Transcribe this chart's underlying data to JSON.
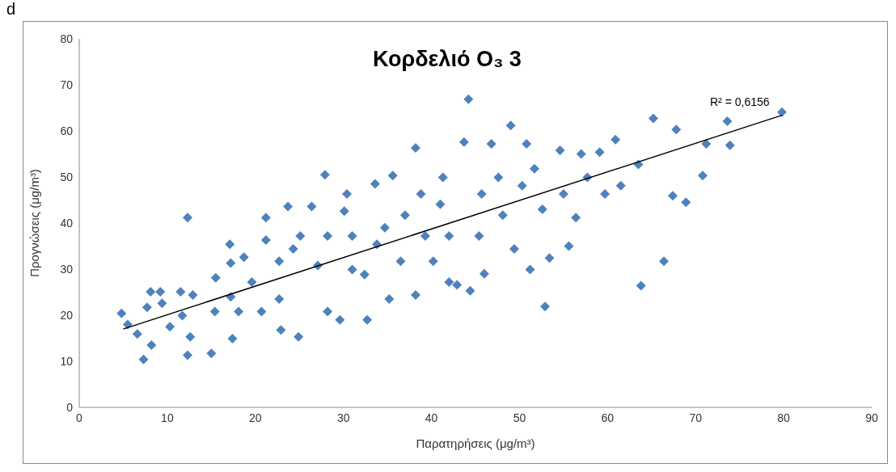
{
  "chart_data": {
    "type": "scatter",
    "title": "Κορδελιό O₃ 3",
    "xlabel": "Παρατηρήσεις (μg/m³)",
    "ylabel": "Προγνώσεις (μg/m³)",
    "annotations": [
      "d",
      "R² = 0,6156"
    ],
    "xlim": [
      0,
      90
    ],
    "xticks": [
      0,
      10,
      20,
      30,
      40,
      50,
      60,
      70,
      80,
      90
    ],
    "ylim": [
      0,
      80
    ],
    "yticks": [
      0,
      10,
      20,
      30,
      40,
      50,
      60,
      70,
      80
    ],
    "series": [
      {
        "marker": "diamond",
        "color": "#4f81bd",
        "x": [
          4.8,
          5.5,
          6.6,
          7.3,
          7.7,
          8.1,
          9.2,
          9.4,
          8.2,
          10.3,
          11.5,
          12.3,
          12.3,
          12.9,
          12.6,
          15,
          15.4,
          15.5,
          17.1,
          17.2,
          17.4,
          18.1,
          18.7,
          19.6,
          21.2,
          21.2,
          20.7,
          22.7,
          22.9,
          23.7,
          24.3,
          24.9,
          25.1,
          26.4,
          27.1,
          27.9,
          28.2,
          29.6,
          30.1,
          30.4,
          31,
          31,
          32.7,
          33.6,
          33.8,
          35.2,
          35.6,
          36.5,
          37,
          38.2,
          38.2,
          38.8,
          39.3,
          40.2,
          41,
          41.3,
          42,
          42.9,
          43.7,
          44.2,
          44.4,
          45.4,
          46,
          46.8,
          47.6,
          48.1,
          49,
          49.4,
          50.8,
          51.2,
          52.6,
          52.9,
          53.4,
          54.6,
          55.6,
          56.4,
          57,
          57.7,
          59.1,
          59.7,
          60.9,
          61.5,
          63.5,
          63.8,
          65.2,
          66.4,
          67.8,
          67.4,
          68.9,
          70.8,
          71.2,
          73.6,
          73.9,
          79.8,
          32.4,
          28.2,
          34.7,
          42,
          45.7,
          50.3,
          55,
          22.7,
          17.2,
          11.7,
          51.7
        ],
        "values": [
          20.4,
          18,
          15.9,
          10.4,
          21.7,
          25.1,
          25.1,
          22.6,
          13.5,
          17.5,
          25.1,
          41.2,
          11.3,
          24.4,
          15.3,
          11.7,
          20.8,
          28.1,
          35.4,
          31.3,
          14.9,
          20.8,
          32.6,
          27.2,
          41.2,
          36.3,
          20.8,
          31.7,
          16.8,
          43.6,
          34.4,
          15.3,
          37.2,
          43.6,
          30.8,
          50.5,
          20.8,
          19,
          42.6,
          46.3,
          37.2,
          29.9,
          19,
          48.5,
          35.4,
          23.5,
          50.3,
          31.7,
          41.7,
          56.3,
          24.4,
          46.3,
          37.2,
          31.7,
          44.1,
          49.9,
          27.2,
          26.6,
          57.6,
          66.9,
          25.3,
          37.2,
          29,
          57.2,
          49.9,
          41.7,
          61.2,
          34.4,
          57.2,
          29.9,
          43,
          21.9,
          32.4,
          55.8,
          35,
          41.2,
          55,
          49.9,
          55.4,
          46.3,
          58.1,
          48.1,
          52.7,
          26.4,
          62.7,
          31.7,
          60.3,
          45.9,
          44.5,
          50.3,
          57.2,
          62.1,
          56.9,
          64.1,
          28.8,
          37.2,
          39,
          37.2,
          46.3,
          48.1,
          46.3,
          23.5,
          24,
          19.9,
          51.8
        ]
      },
      {
        "type": "line",
        "marker": "none",
        "color": "#000000",
        "x": [
          5,
          79.8
        ],
        "values": [
          17,
          63.4
        ]
      }
    ]
  }
}
